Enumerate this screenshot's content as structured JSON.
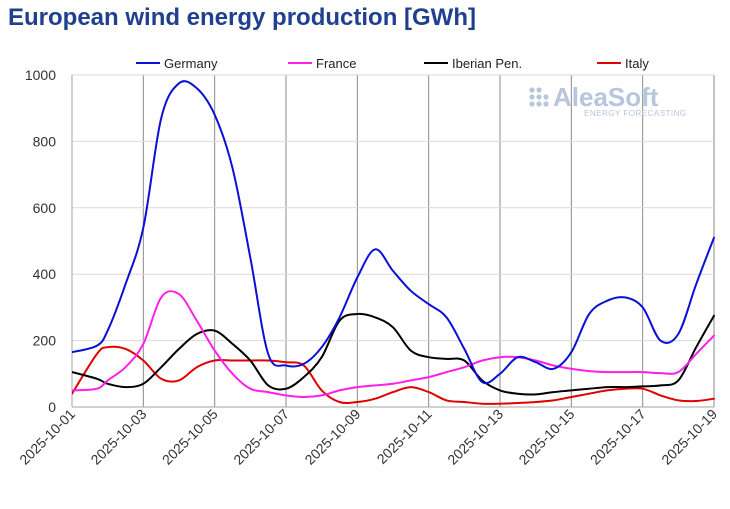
{
  "chart_data": {
    "type": "line",
    "title": "European wind energy production [GWh]",
    "xlabel": "",
    "ylabel": "",
    "ylim": [
      0,
      1000
    ],
    "yticks": [
      0,
      200,
      400,
      600,
      800,
      1000
    ],
    "x_range": [
      0,
      18
    ],
    "xtick_labels": [
      "2025-10-01",
      "2025-10-03",
      "2025-10-05",
      "2025-10-07",
      "2025-10-09",
      "2025-10-11",
      "2025-10-13",
      "2025-10-15",
      "2025-10-17",
      "2025-10-19"
    ],
    "xtick_positions": [
      0,
      2,
      4,
      6,
      8,
      10,
      12,
      14,
      16,
      18
    ],
    "grid_x_positions": [
      2,
      4,
      6,
      8,
      10,
      12,
      14,
      16,
      18
    ],
    "legend_position": "top",
    "series": [
      {
        "name": "Germany",
        "color": "#0a10d6",
        "x": [
          0,
          0.7,
          1,
          1.5,
          2,
          2.5,
          3,
          3.5,
          4,
          4.5,
          5,
          5.5,
          6,
          6.5,
          7,
          7.5,
          8,
          8.5,
          9,
          9.5,
          10,
          10.5,
          11,
          11.5,
          12,
          12.5,
          13,
          13.5,
          14,
          14.5,
          15,
          15.5,
          16,
          16.5,
          17,
          17.5,
          18
        ],
        "values": [
          165,
          185,
          230,
          370,
          540,
          870,
          975,
          960,
          880,
          720,
          450,
          160,
          125,
          130,
          180,
          270,
          390,
          475,
          410,
          350,
          310,
          270,
          175,
          75,
          100,
          150,
          135,
          115,
          165,
          280,
          320,
          330,
          300,
          200,
          220,
          370,
          510
        ]
      },
      {
        "name": "France",
        "color": "#ff1fe8",
        "x": [
          0,
          0.7,
          1,
          1.5,
          2,
          2.5,
          3,
          3.5,
          4,
          4.5,
          5,
          5.5,
          6,
          6.5,
          7,
          7.5,
          8,
          8.5,
          9,
          9.5,
          10,
          10.5,
          11,
          11.5,
          12,
          12.5,
          13,
          13.5,
          14,
          14.5,
          15,
          15.5,
          16,
          16.5,
          17,
          17.5,
          18
        ],
        "values": [
          50,
          55,
          80,
          120,
          190,
          330,
          340,
          260,
          170,
          100,
          55,
          45,
          35,
          30,
          35,
          50,
          60,
          65,
          70,
          80,
          90,
          105,
          120,
          140,
          150,
          150,
          140,
          125,
          115,
          108,
          105,
          105,
          105,
          102,
          105,
          160,
          215
        ]
      },
      {
        "name": "Iberian Pen.",
        "color": "#000000",
        "x": [
          0,
          0.7,
          1,
          1.5,
          2,
          2.5,
          3,
          3.5,
          4,
          4.5,
          5,
          5.5,
          6,
          6.5,
          7,
          7.5,
          8,
          8.5,
          9,
          9.5,
          10,
          10.5,
          11,
          11.5,
          12,
          12.5,
          13,
          13.5,
          14,
          14.5,
          15,
          15.5,
          16,
          16.5,
          17,
          17.5,
          18
        ],
        "values": [
          105,
          85,
          70,
          60,
          70,
          120,
          175,
          220,
          230,
          190,
          140,
          65,
          55,
          90,
          150,
          260,
          280,
          270,
          240,
          170,
          150,
          145,
          140,
          80,
          50,
          40,
          38,
          45,
          50,
          55,
          60,
          60,
          62,
          65,
          80,
          180,
          275
        ]
      },
      {
        "name": "Italy",
        "color": "#e00000",
        "x": [
          0,
          0.7,
          1,
          1.5,
          2,
          2.5,
          3,
          3.5,
          4,
          4.5,
          5,
          5.5,
          6,
          6.5,
          7,
          7.5,
          8,
          8.5,
          9,
          9.5,
          10,
          10.5,
          11,
          11.5,
          12,
          12.5,
          13,
          13.5,
          14,
          14.5,
          15,
          15.5,
          16,
          16.5,
          17,
          17.5,
          18
        ],
        "values": [
          40,
          160,
          180,
          175,
          140,
          85,
          80,
          120,
          140,
          140,
          140,
          140,
          135,
          125,
          50,
          15,
          15,
          25,
          45,
          60,
          45,
          20,
          15,
          10,
          10,
          12,
          15,
          20,
          30,
          40,
          50,
          55,
          55,
          35,
          20,
          18,
          25
        ]
      }
    ]
  },
  "logo": {
    "main": "AleaSoft",
    "sub": "ENERGY FORECASTING"
  }
}
